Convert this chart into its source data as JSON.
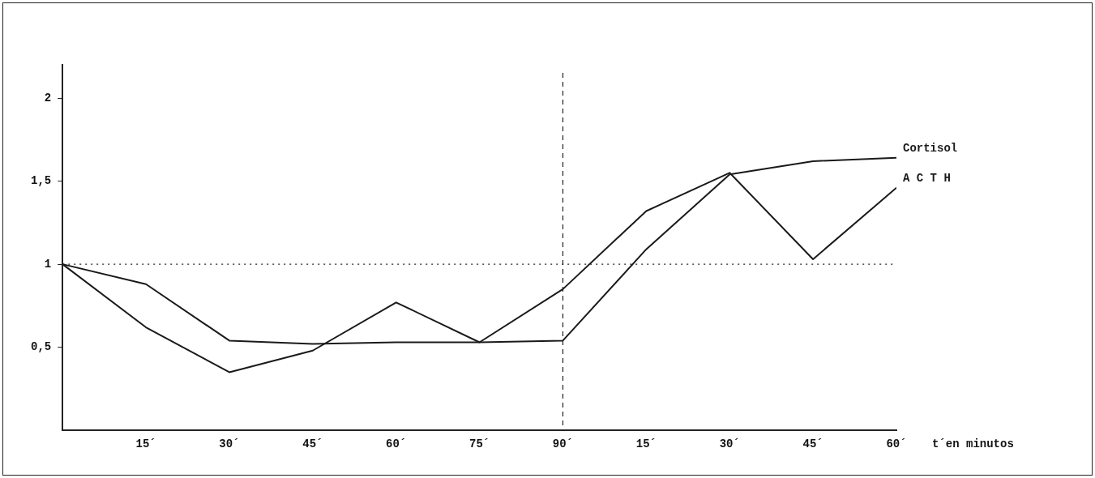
{
  "chart_data": {
    "type": "line",
    "xlabel": "t´en minutos",
    "categories": [
      null,
      "15´",
      "30´",
      "45´",
      "60´",
      "75´",
      "90´",
      "15´",
      "30´",
      "45´",
      "60´"
    ],
    "series": [
      {
        "name": "Cortisol",
        "color": "#1a1a1a",
        "values": [
          1.0,
          0.88,
          0.54,
          0.52,
          0.53,
          0.53,
          0.54,
          1.09,
          1.54,
          1.62,
          1.64
        ]
      },
      {
        "name": "A C T H",
        "color": "#1a1a1a",
        "values": [
          1.0,
          0.62,
          0.35,
          0.48,
          0.77,
          0.53,
          0.85,
          1.32,
          1.55,
          1.03,
          1.46
        ]
      }
    ],
    "ylim": [
      0,
      2.2
    ],
    "yticks": [
      {
        "value": 0.5,
        "label": "0,5"
      },
      {
        "value": 1,
        "label": "1"
      },
      {
        "value": 1.5,
        "label": "1,5"
      },
      {
        "value": 2,
        "label": "2"
      }
    ],
    "ref_lines": [
      {
        "axis": "y",
        "value": 1,
        "line_style": "dotted"
      },
      {
        "axis": "x",
        "value": "90´",
        "line_style": "dashed"
      }
    ],
    "grid": false,
    "legend": false,
    "marker": "none",
    "line_style": "solid"
  }
}
